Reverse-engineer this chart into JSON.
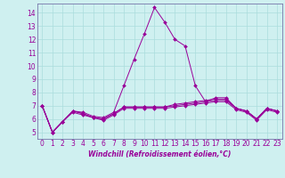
{
  "title": "",
  "xlabel": "Windchill (Refroidissement éolien,°C)",
  "bg_color": "#cff0f0",
  "grid_color": "#aadddd",
  "line_color": "#990099",
  "spine_color": "#7777aa",
  "xlim": [
    -0.5,
    23.5
  ],
  "ylim": [
    4.5,
    14.7
  ],
  "xticks": [
    0,
    1,
    2,
    3,
    4,
    5,
    6,
    7,
    8,
    9,
    10,
    11,
    12,
    13,
    14,
    15,
    16,
    17,
    18,
    19,
    20,
    21,
    22,
    23
  ],
  "yticks": [
    5,
    6,
    7,
    8,
    9,
    10,
    11,
    12,
    13,
    14
  ],
  "curves": [
    [
      7.0,
      5.0,
      5.8,
      6.6,
      6.5,
      6.2,
      6.1,
      6.5,
      8.5,
      10.5,
      12.4,
      14.4,
      13.3,
      12.0,
      11.5,
      8.5,
      7.3,
      7.6,
      7.6,
      6.8,
      6.6,
      6.0,
      6.8,
      6.6
    ],
    [
      7.0,
      5.0,
      5.8,
      6.6,
      6.4,
      6.1,
      6.0,
      6.4,
      6.9,
      6.9,
      6.9,
      6.9,
      6.9,
      7.1,
      7.2,
      7.3,
      7.4,
      7.5,
      7.5,
      6.8,
      6.6,
      6.0,
      6.8,
      6.6
    ],
    [
      7.0,
      5.0,
      5.8,
      6.6,
      6.4,
      6.1,
      6.0,
      6.4,
      6.9,
      6.9,
      6.9,
      6.9,
      6.9,
      7.0,
      7.1,
      7.2,
      7.3,
      7.4,
      7.4,
      6.8,
      6.6,
      6.0,
      6.8,
      6.6
    ],
    [
      7.0,
      5.0,
      5.8,
      6.5,
      6.3,
      6.1,
      5.9,
      6.3,
      6.8,
      6.8,
      6.8,
      6.8,
      6.8,
      6.9,
      7.0,
      7.1,
      7.2,
      7.3,
      7.3,
      6.7,
      6.5,
      5.9,
      6.7,
      6.5
    ]
  ],
  "xlabel_fontsize": 5.5,
  "tick_fontsize": 5.5,
  "marker_size": 2.0,
  "lw": 0.7
}
